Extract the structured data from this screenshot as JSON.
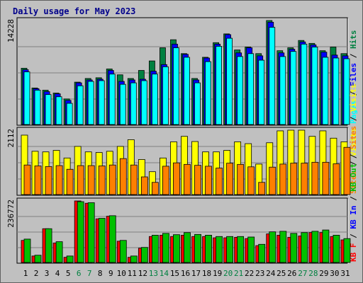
{
  "title": "Daily usage for May 2023",
  "colors": {
    "frame": "#c0c0c0",
    "panel": "#c0c0c0",
    "grid": "#808080",
    "hits": "#008040",
    "files": "#0000ff",
    "pages": "#00ffff",
    "visits": "#ffff00",
    "sites": "#ff8000",
    "kbin": "#ff0000",
    "kbout": "#00c000",
    "day_weekday": "#000000",
    "day_weekend": "#008040",
    "title": "#00008b"
  },
  "chart_data": {
    "type": "bar",
    "categories": [
      "1",
      "2",
      "3",
      "4",
      "5",
      "6",
      "7",
      "8",
      "9",
      "10",
      "11",
      "12",
      "13",
      "14",
      "15",
      "16",
      "17",
      "18",
      "19",
      "20",
      "21",
      "22",
      "23",
      "24",
      "25",
      "26",
      "27",
      "28",
      "29",
      "30",
      "31"
    ],
    "weekend_days": [
      "6",
      "7",
      "13",
      "14",
      "20",
      "21",
      "27",
      "28"
    ],
    "panels": [
      {
        "id": "top",
        "ylabel_max": "14228",
        "ymax": 14228,
        "legend": [
          {
            "text": "Pages",
            "color": "#00ffff"
          },
          {
            "text": " / ",
            "color": "#000000"
          },
          {
            "text": "Files",
            "color": "#0000ff"
          },
          {
            "text": " / ",
            "color": "#000000"
          },
          {
            "text": "Hits",
            "color": "#008040"
          }
        ],
        "series": [
          {
            "name": "Hits",
            "color": "#008040",
            "values": [
              7700,
              5000,
              4700,
              4300,
              3500,
              5800,
              6300,
              6400,
              7600,
              6800,
              6300,
              7400,
              8700,
              10500,
              11600,
              9700,
              6300,
              9200,
              11200,
              12400,
              10200,
              10600,
              9700,
              14228,
              10100,
              10500,
              11500,
              11100,
              10100,
              10600,
              9700
            ]
          },
          {
            "name": "Files",
            "color": "#0000ff",
            "values": [
              7500,
              4900,
              4500,
              4200,
              3300,
              5700,
              6100,
              6200,
              7400,
              5900,
              6100,
              6200,
              7300,
              8200,
              11000,
              9600,
              6100,
              9100,
              11000,
              12300,
              9800,
              10500,
              9400,
              14000,
              9800,
              10300,
              11300,
              10900,
              9900,
              9500,
              9400
            ]
          },
          {
            "name": "Pages",
            "color": "#00ffff",
            "values": [
              7200,
              4700,
              4100,
              3800,
              2900,
              5300,
              5900,
              6000,
              6900,
              5500,
              5700,
              6000,
              6900,
              7900,
              10500,
              9200,
              5700,
              8600,
              10700,
              11800,
              9300,
              9700,
              8800,
              13300,
              9300,
              10000,
              11000,
              10600,
              9200,
              9100,
              9000
            ]
          }
        ]
      },
      {
        "id": "middle",
        "ylabel_max": "2112",
        "ymax": 2112,
        "legend": [
          {
            "text": "Sites",
            "color": "#ff8000"
          },
          {
            "text": " / ",
            "color": "#000000"
          },
          {
            "text": "Visits",
            "color": "#ffff00"
          }
        ],
        "series": [
          {
            "name": "Visits",
            "color": "#ffff00",
            "values": [
              1950,
              1420,
              1400,
              1450,
              1200,
              1580,
              1400,
              1380,
              1420,
              1580,
              1800,
              1150,
              750,
              1200,
              1730,
              1910,
              1740,
              1400,
              1400,
              1450,
              1730,
              1670,
              1000,
              1700,
              2090,
              2112,
              2112,
              1910,
              2090,
              1850,
              1730
            ]
          },
          {
            "name": "Sites",
            "color": "#ff8000",
            "values": [
              970,
              940,
              920,
              950,
              830,
              950,
              950,
              940,
              970,
              1180,
              970,
              580,
              400,
              930,
              1040,
              990,
              960,
              930,
              870,
              1030,
              990,
              910,
              400,
              900,
              1000,
              1030,
              1030,
              1060,
              1060,
              1010,
              1550
            ]
          }
        ]
      },
      {
        "id": "bottom",
        "ylabel_max": "236772",
        "ymax": 236772,
        "legend": [
          {
            "text": "KB F",
            "color": "#ff0000"
          },
          {
            "text": " / ",
            "color": "#000000"
          },
          {
            "text": "KB In",
            "color": "#0000ff"
          },
          {
            "text": " / ",
            "color": "#000000"
          },
          {
            "text": "KB Out",
            "color": "#00c000"
          },
          {
            "text": " / ",
            "color": "#000000"
          },
          {
            "text": "Sites",
            "color": "#ff8000"
          },
          {
            "text": " / ",
            "color": "#000000"
          },
          {
            "text": "Visits",
            "color": "#ffff00"
          }
        ],
        "series": [
          {
            "name": "KB F",
            "color": "#ff0000",
            "values": [
              85000,
              25000,
              130000,
              75000,
              20000,
              236772,
              228000,
              168000,
              178000,
              82000,
              20000,
              55000,
              100000,
              105000,
              100000,
              105000,
              100000,
              100000,
              95000,
              95000,
              97000,
              92000,
              65000,
              110000,
              105000,
              97000,
              102000,
              115000,
              115000,
              100000,
              87000
            ]
          },
          {
            "name": "KB Out",
            "color": "#00c000",
            "values": [
              90000,
              28000,
              130000,
              80000,
              25000,
              234000,
              230000,
              170000,
              180000,
              85000,
              25000,
              58000,
              105000,
              112000,
              107000,
              115000,
              108000,
              105000,
              100000,
              100000,
              100000,
              98000,
              70000,
              118000,
              120000,
              112000,
              115000,
              120000,
              125000,
              105000,
              92000
            ]
          }
        ]
      }
    ]
  }
}
